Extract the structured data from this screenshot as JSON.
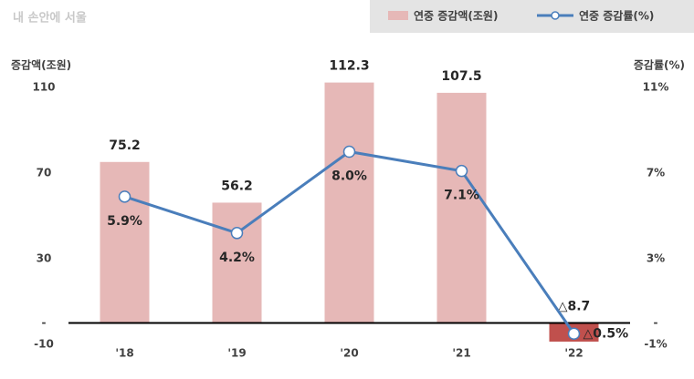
{
  "chart_data": {
    "type": "bar-line",
    "watermark": "내 손안에 서울",
    "y_label": "증감액(조원)",
    "y2_label": "증감률(%)",
    "categories": [
      "'18",
      "'19",
      "'20",
      "'21",
      "'22"
    ],
    "series": [
      {
        "name": "연중 증감액(조원)",
        "type": "bar",
        "color": "#e6b8b7",
        "negative_color": "#c0504d",
        "values": [
          75.2,
          56.2,
          112.3,
          107.5,
          -8.7
        ],
        "value_labels": [
          "75.2",
          "56.2",
          "112.3",
          "107.5",
          "△8.7"
        ]
      },
      {
        "name": "연중 증감률(%)",
        "type": "line",
        "axis": "y2",
        "color": "#4a7ebb",
        "values": [
          5.9,
          4.2,
          8.0,
          7.1,
          -0.5
        ],
        "value_labels": [
          "5.9%",
          "4.2%",
          "8.0%",
          "7.1%",
          "△0.5%"
        ]
      }
    ],
    "ylim": [
      -10,
      110
    ],
    "yticks": [
      110,
      70,
      30,
      {
        "value": 0,
        "label": "-"
      },
      -10
    ],
    "y2lim": [
      -1,
      11
    ],
    "y2ticks": [
      {
        "value": 11,
        "label": "11%"
      },
      {
        "value": 7,
        "label": "7%"
      },
      {
        "value": 3,
        "label": "3%"
      },
      {
        "value": 0,
        "label": "-"
      },
      {
        "value": -1,
        "label": "-1%"
      }
    ],
    "legend": "top-right"
  }
}
